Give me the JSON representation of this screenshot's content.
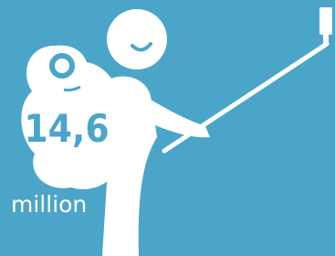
{
  "figure": {
    "value": "14,6",
    "unit": "million"
  }
}
